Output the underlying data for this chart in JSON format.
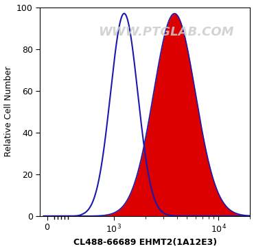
{
  "xlabel": "CL488-66689 EHMT2(1A12E3)",
  "ylabel": "Relative Cell Number",
  "ylim": [
    0,
    100
  ],
  "watermark": "WWW.PTGLAB.COM",
  "blue_peak_log": 3.1,
  "blue_sigma": 0.13,
  "blue_height": 97,
  "red_peak_log": 3.58,
  "red_sigma": 0.2,
  "red_height": 97,
  "blue_color": "#1a1aaa",
  "red_color": "#dd0000",
  "background_color": "#ffffff",
  "plot_bg_color": "#ffffff",
  "border_color": "#000000",
  "font_size_label": 9,
  "font_size_tick": 9,
  "watermark_color": "#cccccc",
  "watermark_fontsize": 13,
  "linthresh": 500,
  "xlim": [
    -100,
    20000
  ]
}
